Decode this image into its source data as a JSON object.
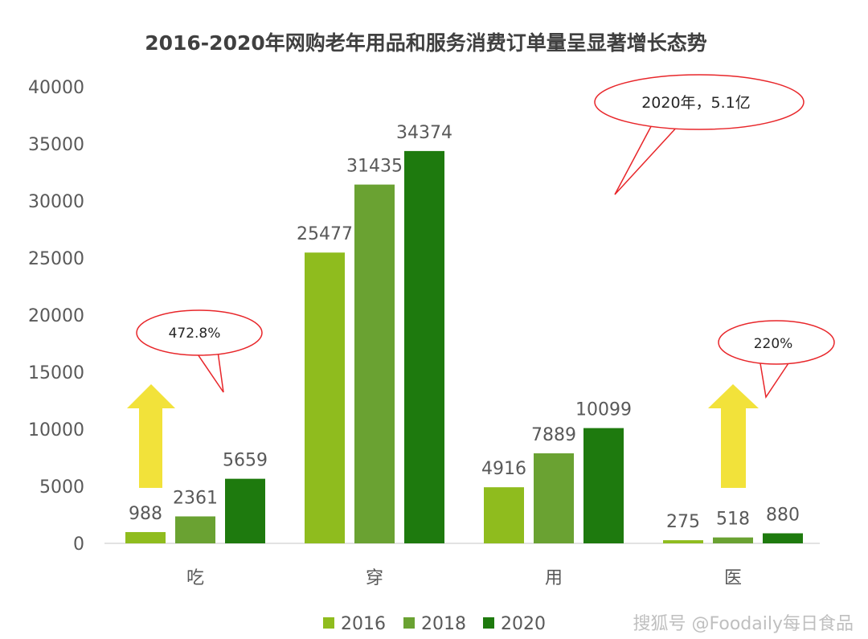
{
  "chart_data": {
    "type": "bar",
    "title": "2016-2020年网购老年用品和服务消费订单量呈显著增长态势",
    "categories": [
      "吃",
      "穿",
      "用",
      "医"
    ],
    "series": [
      {
        "name": "2016",
        "values": [
          988,
          25477,
          4916,
          275
        ],
        "color": "#8fbc1e"
      },
      {
        "name": "2018",
        "values": [
          2361,
          31435,
          7889,
          518
        ],
        "color": "#6aa232"
      },
      {
        "name": "2020",
        "values": [
          5659,
          34374,
          10099,
          880
        ],
        "color": "#1e7a0e"
      }
    ],
    "ylim": [
      0,
      40000
    ],
    "yticks": [
      0,
      5000,
      10000,
      15000,
      20000,
      25000,
      30000,
      35000,
      40000
    ],
    "grid": false,
    "legend_position": "bottom",
    "annotations": [
      {
        "id": "callout-eat",
        "text": "472.8%",
        "category": "吃"
      },
      {
        "id": "callout-total",
        "text": "2020年，5.1亿"
      },
      {
        "id": "callout-med",
        "text": "220%",
        "category": "医"
      }
    ],
    "arrow_color": "#f2e23a",
    "callout_color": "#e8262a"
  },
  "watermark": "搜狐号 @Foodaily每日食品"
}
